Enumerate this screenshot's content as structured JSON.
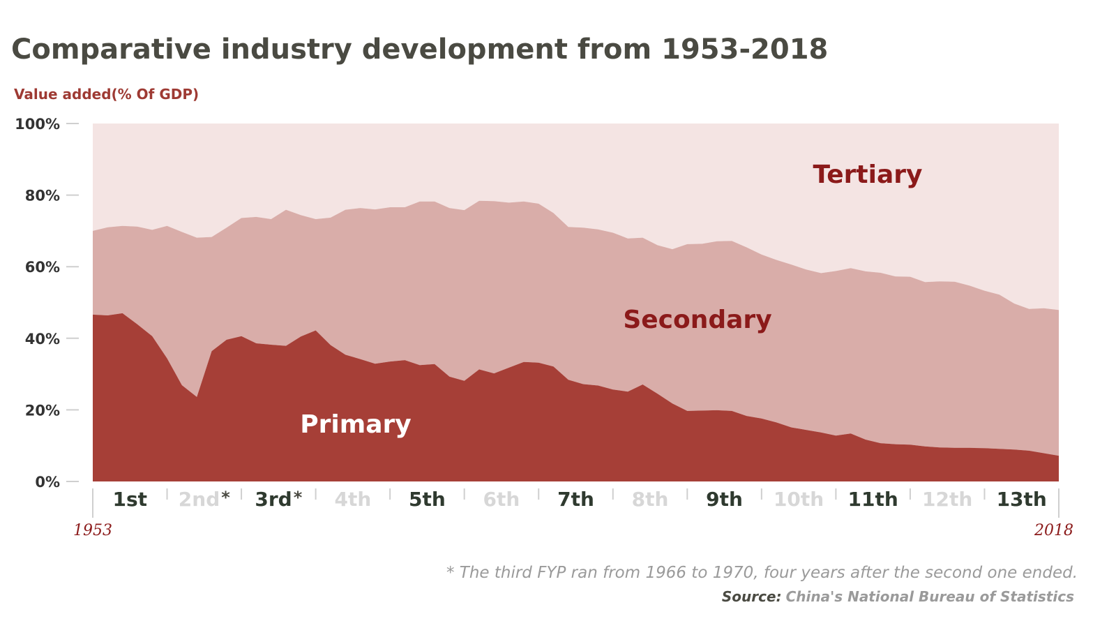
{
  "colors": {
    "primary": "#a63f37",
    "secondary": "#d9ada9",
    "tertiary": "#f4e4e3",
    "title": "#4a4a42",
    "accent": "#9e3a33",
    "plan_dark": "#2f3a2f",
    "plan_light": "#d7d7d7"
  },
  "chart_data": {
    "type": "area",
    "stacked": true,
    "title": "Comparative industry development from 1953-2018",
    "ylabel": "Value added(% Of GDP)",
    "ylim": [
      0,
      100
    ],
    "yticks": [
      "0%",
      "20%",
      "40%",
      "60%",
      "80%",
      "100%"
    ],
    "x_start_label": "1953",
    "x_end_label": "2018",
    "x": [
      1953,
      1954,
      1955,
      1956,
      1957,
      1958,
      1959,
      1960,
      1961,
      1962,
      1963,
      1964,
      1965,
      1966,
      1967,
      1968,
      1969,
      1970,
      1971,
      1972,
      1973,
      1974,
      1975,
      1976,
      1977,
      1978,
      1979,
      1980,
      1981,
      1982,
      1983,
      1984,
      1985,
      1986,
      1987,
      1988,
      1989,
      1990,
      1991,
      1992,
      1993,
      1994,
      1995,
      1996,
      1997,
      1998,
      1999,
      2000,
      2001,
      2002,
      2003,
      2004,
      2005,
      2006,
      2007,
      2008,
      2009,
      2010,
      2011,
      2012,
      2013,
      2014,
      2015,
      2016,
      2017,
      2018
    ],
    "series": [
      {
        "name": "Primary",
        "values": [
          46.6,
          46.4,
          47.0,
          43.9,
          40.6,
          34.4,
          26.9,
          23.6,
          36.4,
          39.6,
          40.6,
          38.6,
          38.2,
          37.9,
          40.5,
          42.2,
          38.1,
          35.4,
          34.2,
          32.9,
          33.5,
          33.9,
          32.5,
          32.8,
          29.3,
          28.1,
          31.3,
          30.2,
          31.8,
          33.4,
          33.2,
          32.1,
          28.4,
          27.2,
          26.8,
          25.7,
          25.1,
          27.1,
          24.5,
          21.8,
          19.7,
          19.8,
          19.9,
          19.7,
          18.3,
          17.6,
          16.5,
          15.1,
          14.4,
          13.7,
          12.8,
          13.4,
          11.7,
          10.7,
          10.4,
          10.3,
          9.8,
          9.5,
          9.4,
          9.4,
          9.3,
          9.1,
          8.9,
          8.6,
          7.9,
          7.2
        ]
      },
      {
        "name": "Secondary",
        "values": [
          23.4,
          24.6,
          24.4,
          27.3,
          29.7,
          37.0,
          42.8,
          44.5,
          31.9,
          31.3,
          33.0,
          35.3,
          35.1,
          38.0,
          33.9,
          31.1,
          35.6,
          40.5,
          42.2,
          43.1,
          43.1,
          42.7,
          45.7,
          45.4,
          47.1,
          47.7,
          47.1,
          48.1,
          46.1,
          44.8,
          44.4,
          42.9,
          42.7,
          43.7,
          43.6,
          43.8,
          42.8,
          41.0,
          41.5,
          43.1,
          46.6,
          46.6,
          47.2,
          47.5,
          47.1,
          45.8,
          45.4,
          45.5,
          44.8,
          44.5,
          46.0,
          46.2,
          47.0,
          47.6,
          46.9,
          46.9,
          45.9,
          46.4,
          46.4,
          45.3,
          44.0,
          43.1,
          40.8,
          39.6,
          40.5,
          40.7
        ]
      },
      {
        "name": "Tertiary",
        "values": [
          30.0,
          29.0,
          28.6,
          28.8,
          29.7,
          28.6,
          30.3,
          31.9,
          31.7,
          29.1,
          26.4,
          26.1,
          26.7,
          24.1,
          25.6,
          26.7,
          26.3,
          24.1,
          23.6,
          24.0,
          23.4,
          23.4,
          21.8,
          21.8,
          23.6,
          24.2,
          21.6,
          21.7,
          22.1,
          21.8,
          22.4,
          25.0,
          28.9,
          29.1,
          29.6,
          30.5,
          32.1,
          31.9,
          34.0,
          35.1,
          33.7,
          33.6,
          32.9,
          32.8,
          34.6,
          36.6,
          38.1,
          39.4,
          40.8,
          41.8,
          41.2,
          40.4,
          41.3,
          41.7,
          42.7,
          42.8,
          44.3,
          44.1,
          44.2,
          45.3,
          46.7,
          47.8,
          50.3,
          51.8,
          51.6,
          52.1
        ]
      }
    ],
    "series_labels": {
      "primary": "Primary",
      "secondary": "Secondary",
      "tertiary": "Tertiary"
    },
    "five_year_plans": [
      {
        "label": "1st",
        "start": 1953,
        "end": 1957,
        "style": "dark",
        "mark": ""
      },
      {
        "label": "2nd",
        "start": 1958,
        "end": 1962,
        "style": "light",
        "mark": "*"
      },
      {
        "label": "3rd",
        "start": 1963,
        "end": 1967,
        "style": "dark",
        "mark": "*"
      },
      {
        "label": "4th",
        "start": 1968,
        "end": 1972,
        "style": "light",
        "mark": ""
      },
      {
        "label": "5th",
        "start": 1973,
        "end": 1977,
        "style": "dark",
        "mark": ""
      },
      {
        "label": "6th",
        "start": 1978,
        "end": 1982,
        "style": "light",
        "mark": ""
      },
      {
        "label": "7th",
        "start": 1983,
        "end": 1987,
        "style": "dark",
        "mark": ""
      },
      {
        "label": "8th",
        "start": 1988,
        "end": 1992,
        "style": "light",
        "mark": ""
      },
      {
        "label": "9th",
        "start": 1993,
        "end": 1997,
        "style": "dark",
        "mark": ""
      },
      {
        "label": "10th",
        "start": 1998,
        "end": 2002,
        "style": "light",
        "mark": ""
      },
      {
        "label": "11th",
        "start": 2003,
        "end": 2007,
        "style": "dark",
        "mark": ""
      },
      {
        "label": "12th",
        "start": 2008,
        "end": 2012,
        "style": "light",
        "mark": ""
      },
      {
        "label": "13th",
        "start": 2013,
        "end": 2018,
        "style": "dark",
        "mark": ""
      }
    ],
    "footnote": "* The third FYP ran from 1966 to 1970, four years after the second one ended.",
    "source_label": "Source:",
    "source_text": "China's National Bureau of Statistics"
  }
}
